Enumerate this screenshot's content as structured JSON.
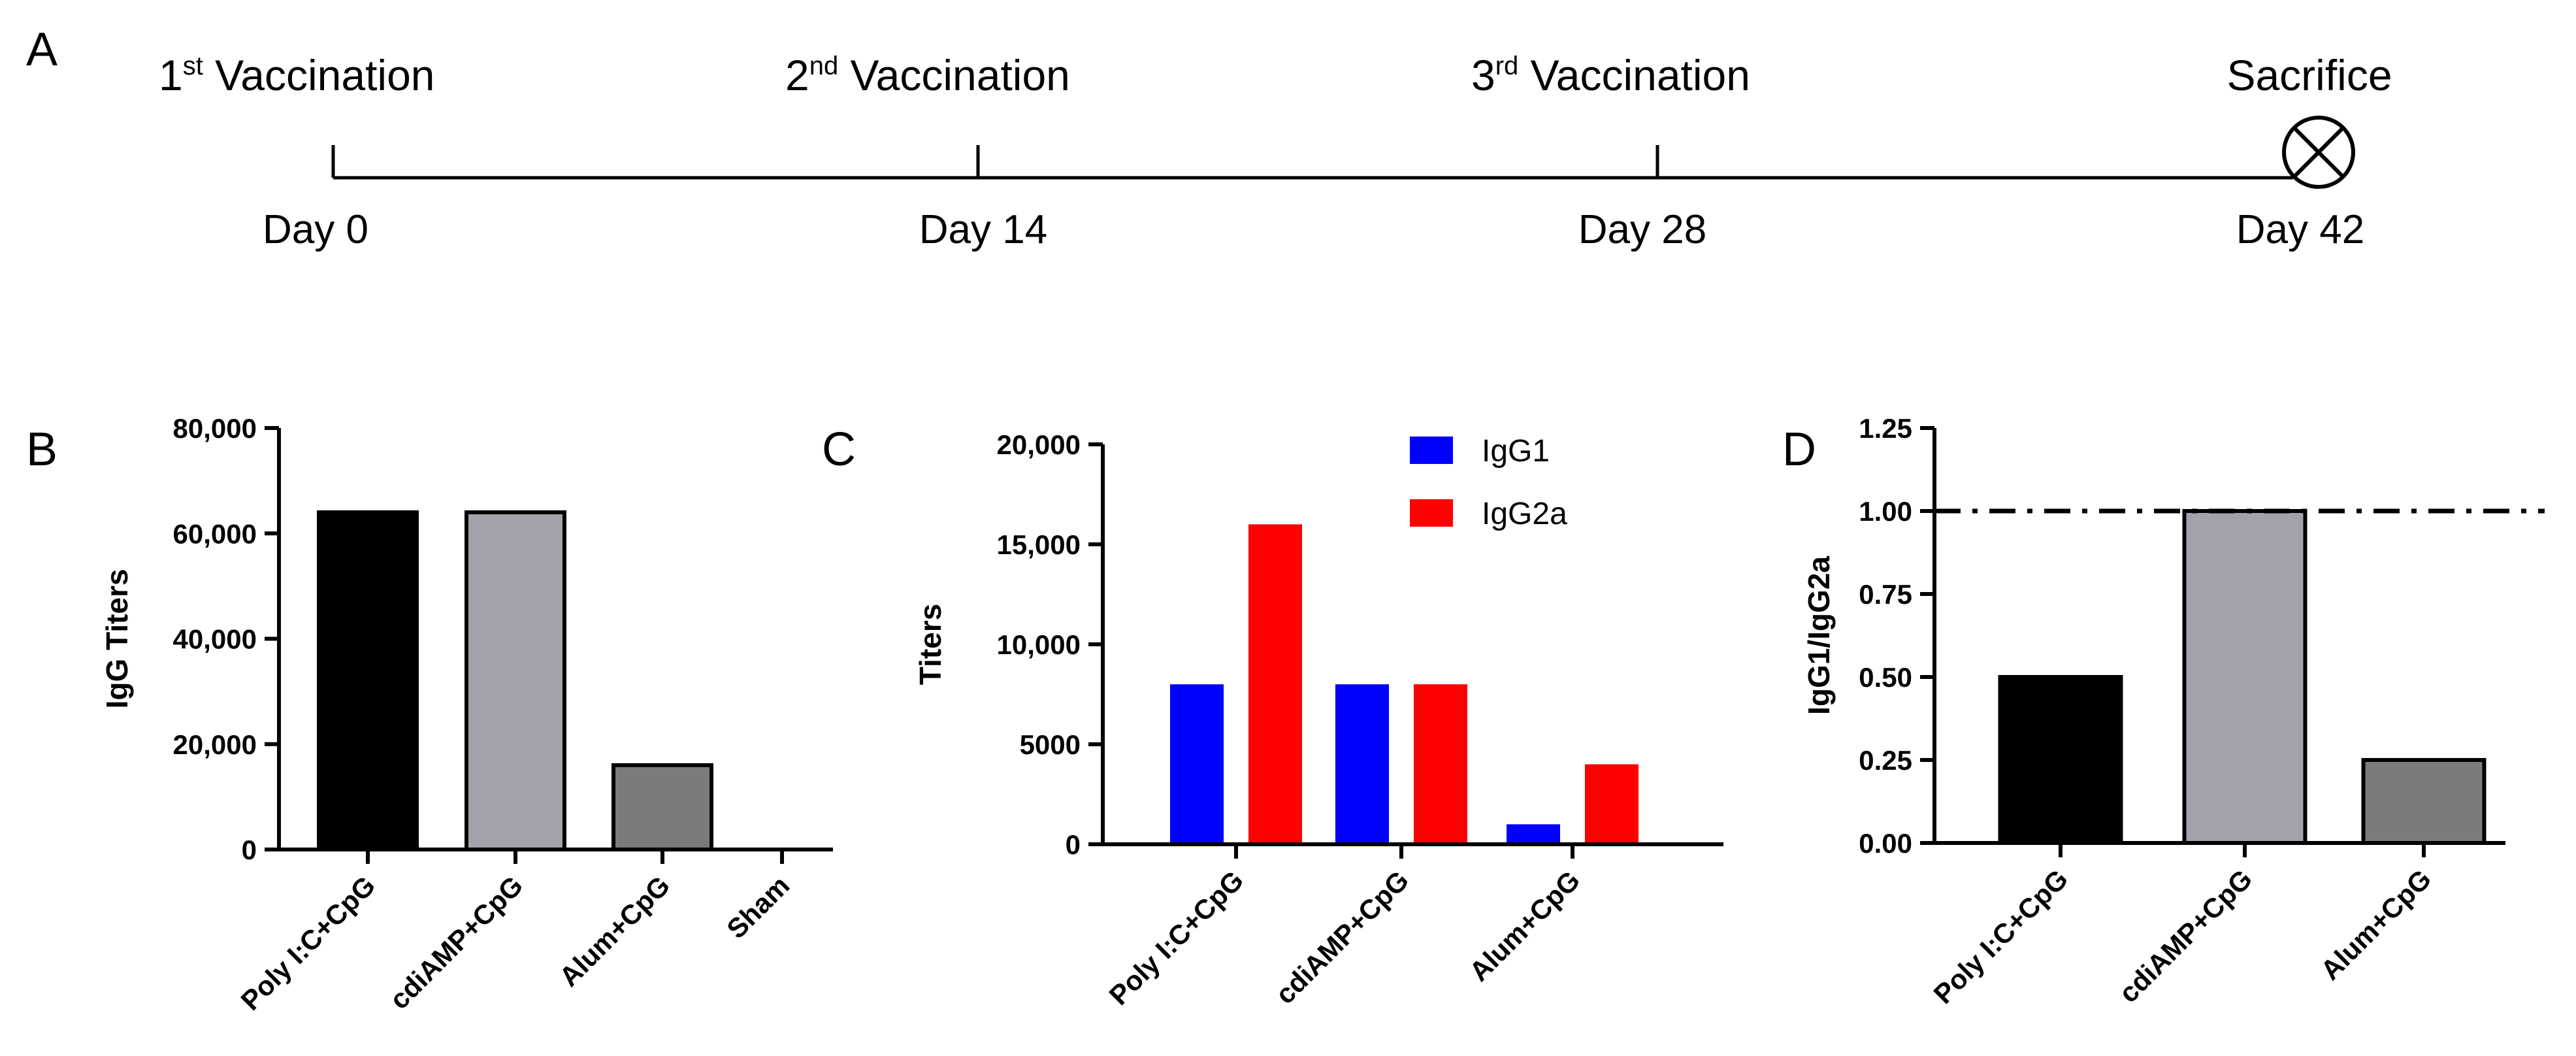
{
  "panels": {
    "A": "A",
    "B": "B",
    "C": "C",
    "D": "D"
  },
  "timeline": {
    "events": [
      {
        "ordinal": "1",
        "suffix": "st",
        "label": " Vaccination",
        "day": "Day 0"
      },
      {
        "ordinal": "2",
        "suffix": "nd",
        "label": " Vaccination",
        "day": "Day 14"
      },
      {
        "ordinal": "3",
        "suffix": "rd",
        "label": " Vaccination",
        "day": "Day 28"
      },
      {
        "ordinal": "",
        "suffix": "",
        "label": "Sacrifice",
        "day": "Day 42"
      }
    ],
    "end_marker_icon": "circled-x-icon"
  },
  "chart_data": [
    {
      "panel": "B",
      "type": "bar",
      "title": "",
      "xlabel": "",
      "ylabel": "IgG Titers",
      "ylim": [
        0,
        80000
      ],
      "yticks": [
        0,
        20000,
        40000,
        60000,
        80000
      ],
      "ytick_labels": [
        "0",
        "20,000",
        "40,000",
        "60,000",
        "80,000"
      ],
      "categories": [
        "Poly I:C+CpG",
        "cdiAMP+CpG",
        "Alum+CpG",
        "Sham"
      ],
      "values": [
        64000,
        64000,
        16000,
        0
      ],
      "colors": [
        "#000000",
        "#a3a2ab",
        "#7b7b7b",
        "#ffffff"
      ]
    },
    {
      "panel": "C",
      "type": "bar",
      "title": "",
      "xlabel": "",
      "ylabel": "Titers",
      "ylim": [
        0,
        20000
      ],
      "yticks": [
        0,
        5000,
        10000,
        15000,
        20000
      ],
      "ytick_labels": [
        "0",
        "5000",
        "10,000",
        "15,000",
        "20,000"
      ],
      "categories": [
        "Poly I:C+CpG",
        "cdiAMP+CpG",
        "Alum+CpG"
      ],
      "series": [
        {
          "name": "IgG1",
          "color": "#0000ff",
          "values": [
            8000,
            8000,
            1000
          ]
        },
        {
          "name": "IgG2a",
          "color": "#ff0000",
          "values": [
            16000,
            8000,
            4000
          ]
        }
      ],
      "legend": "top-right"
    },
    {
      "panel": "D",
      "type": "bar",
      "title": "",
      "xlabel": "",
      "ylabel": "IgG1/IgG2a",
      "ylim": [
        0,
        1.25
      ],
      "yticks": [
        0,
        0.25,
        0.5,
        0.75,
        1.0,
        1.25
      ],
      "ytick_labels": [
        "0.00",
        "0.25",
        "0.50",
        "0.75",
        "1.00",
        "1.25"
      ],
      "categories": [
        "Poly I:C+CpG",
        "cdiAMP+CpG",
        "Alum+CpG"
      ],
      "values": [
        0.5,
        1.0,
        0.25
      ],
      "colors": [
        "#000000",
        "#a3a2ab",
        "#7b7b7b"
      ],
      "reference_line": 1.0
    }
  ]
}
